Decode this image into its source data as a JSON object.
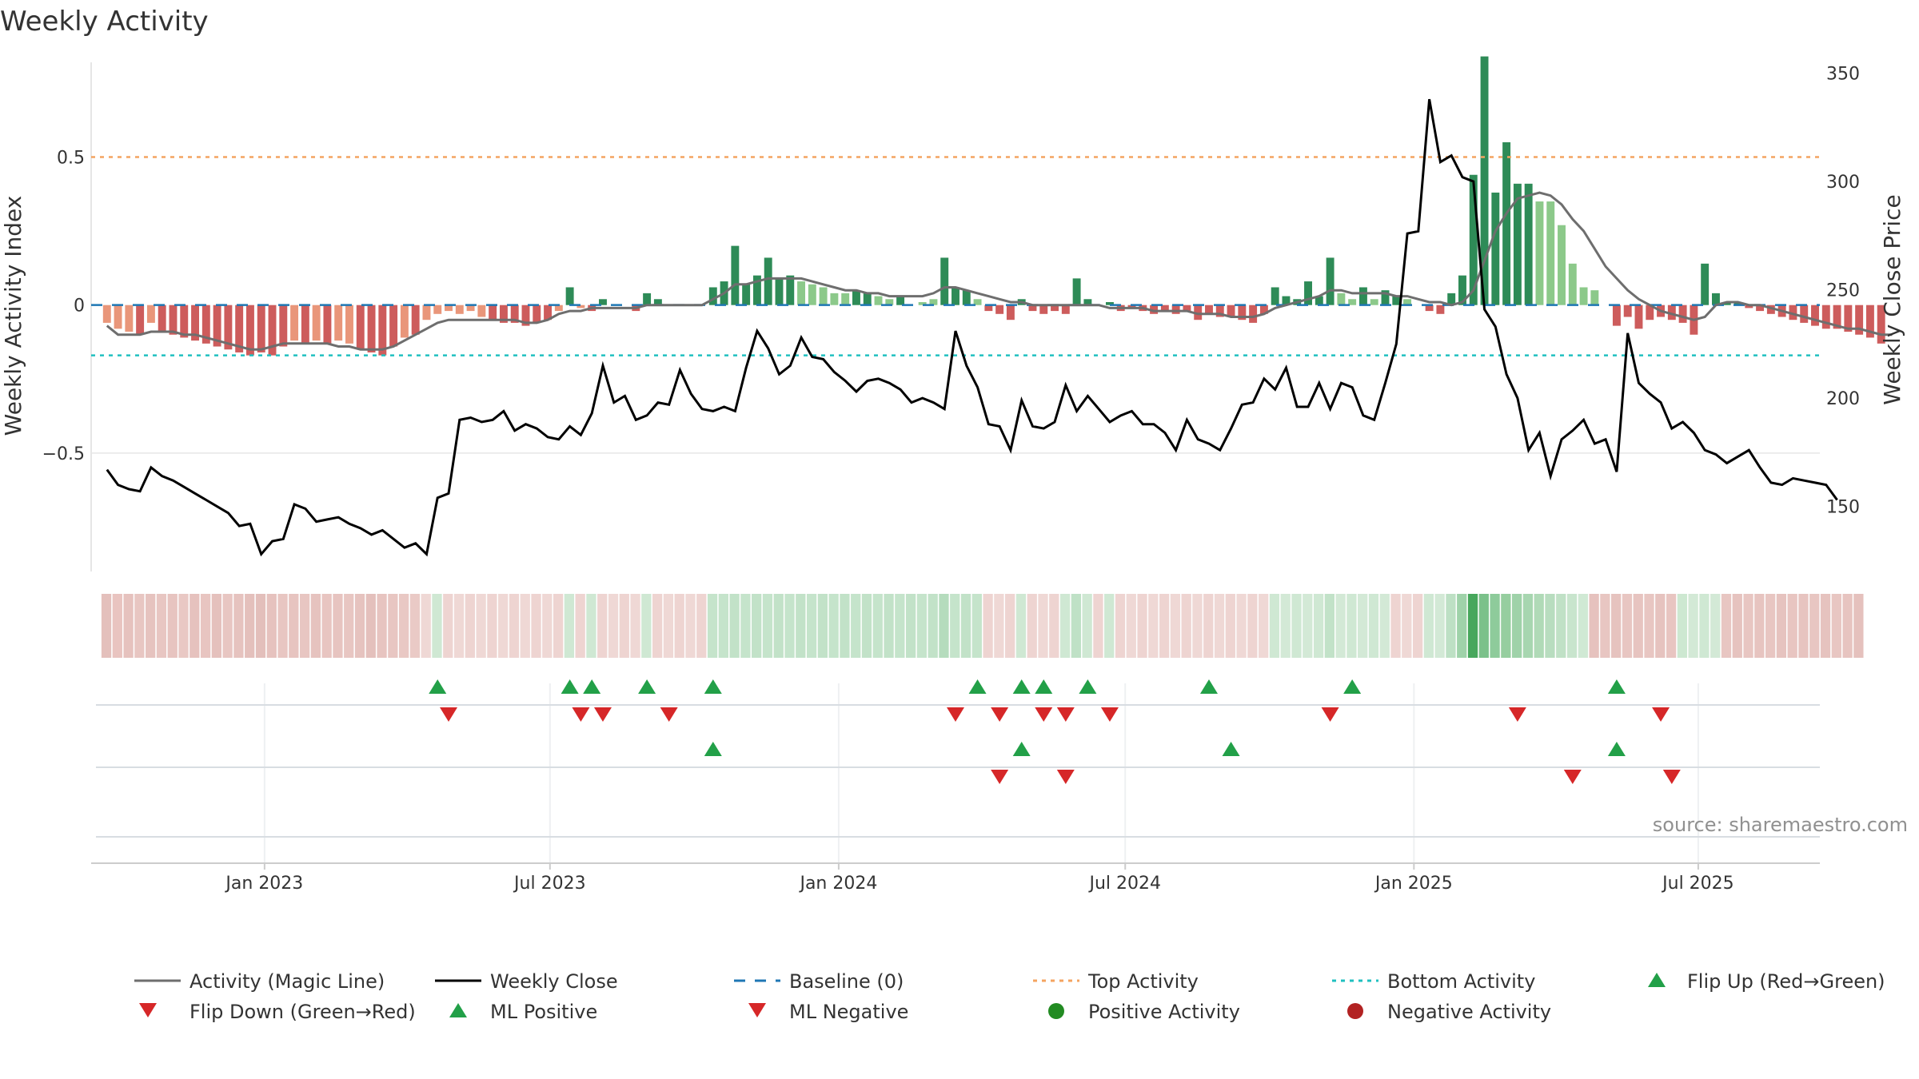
{
  "chart_data": {
    "type": "composite-bar-line",
    "title": "Weekly Activity",
    "ylabel": "Weekly Activity Index",
    "y2label": "Weekly Close Price",
    "source": "source: sharemaestro.com",
    "ylim": [
      -0.9,
      0.82
    ],
    "y2lim": [
      120,
      355
    ],
    "y_ticks": [
      {
        "v": 0.5,
        "label": "0.5"
      },
      {
        "v": 0,
        "label": "0"
      },
      {
        "v": -0.5,
        "label": "−0.5"
      }
    ],
    "y2_ticks": [
      {
        "v": 350,
        "label": "350"
      },
      {
        "v": 300,
        "label": "300"
      },
      {
        "v": 250,
        "label": "250"
      },
      {
        "v": 200,
        "label": "200"
      },
      {
        "v": 150,
        "label": "150"
      }
    ],
    "x_start_week": -1,
    "x_end_week": 155,
    "x_ticks": [
      {
        "w": 14.3,
        "label": "Jan 2023"
      },
      {
        "w": 40.2,
        "label": "Jul 2023"
      },
      {
        "w": 66.4,
        "label": "Jan 2024"
      },
      {
        "w": 92.4,
        "label": "Jul 2024"
      },
      {
        "w": 118.6,
        "label": "Jan 2025"
      },
      {
        "w": 144.4,
        "label": "Jul 2025"
      }
    ],
    "top_activity": 0.5,
    "bottom_activity": -0.17,
    "baseline": 0,
    "activity": [
      -0.06,
      -0.08,
      -0.09,
      -0.1,
      -0.06,
      -0.09,
      -0.1,
      -0.11,
      -0.12,
      -0.13,
      -0.14,
      -0.15,
      -0.16,
      -0.17,
      -0.16,
      -0.17,
      -0.14,
      -0.12,
      -0.13,
      -0.12,
      -0.13,
      -0.12,
      -0.13,
      -0.15,
      -0.16,
      -0.17,
      -0.14,
      -0.11,
      -0.1,
      -0.05,
      -0.03,
      -0.02,
      -0.03,
      -0.02,
      -0.04,
      -0.05,
      -0.06,
      -0.06,
      -0.07,
      -0.06,
      -0.05,
      -0.02,
      0.06,
      -0.01,
      -0.02,
      0.02,
      0.0,
      0.0,
      -0.02,
      0.04,
      0.02,
      0.0,
      0.0,
      0.0,
      0.0,
      0.06,
      0.08,
      0.2,
      0.07,
      0.1,
      0.16,
      0.09,
      0.1,
      0.08,
      0.07,
      0.06,
      0.04,
      0.04,
      0.05,
      0.04,
      0.03,
      0.02,
      0.03,
      0.0,
      0.01,
      0.02,
      0.16,
      0.06,
      0.05,
      0.02,
      -0.02,
      -0.03,
      -0.05,
      0.02,
      -0.02,
      -0.03,
      -0.02,
      -0.03,
      0.09,
      0.02,
      0.0,
      0.01,
      -0.02,
      -0.01,
      -0.02,
      -0.03,
      -0.02,
      -0.03,
      -0.02,
      -0.05,
      -0.03,
      -0.04,
      -0.04,
      -0.05,
      -0.06,
      -0.03,
      0.06,
      0.03,
      0.02,
      0.08,
      0.03,
      0.16,
      0.04,
      0.02,
      0.06,
      0.02,
      0.05,
      0.03,
      0.02,
      0.0,
      -0.02,
      -0.03,
      0.04,
      0.1,
      0.44,
      0.84,
      0.38,
      0.55,
      0.41,
      0.41,
      0.35,
      0.35,
      0.27,
      0.14,
      0.06,
      0.05,
      0.0,
      -0.07,
      -0.04,
      -0.08,
      -0.05,
      -0.04,
      -0.05,
      -0.06,
      -0.1,
      0.14,
      0.04,
      0.01,
      0.01,
      -0.01,
      -0.02,
      -0.03,
      -0.04,
      -0.05,
      -0.06,
      -0.07,
      -0.08,
      -0.08,
      -0.09,
      -0.1,
      -0.11,
      -0.13
    ],
    "magic_line": [
      -0.07,
      -0.1,
      -0.1,
      -0.1,
      -0.09,
      -0.09,
      -0.09,
      -0.1,
      -0.1,
      -0.11,
      -0.12,
      -0.13,
      -0.14,
      -0.15,
      -0.15,
      -0.14,
      -0.13,
      -0.13,
      -0.13,
      -0.13,
      -0.13,
      -0.14,
      -0.14,
      -0.15,
      -0.15,
      -0.15,
      -0.14,
      -0.12,
      -0.1,
      -0.08,
      -0.06,
      -0.05,
      -0.05,
      -0.05,
      -0.05,
      -0.05,
      -0.05,
      -0.05,
      -0.06,
      -0.06,
      -0.05,
      -0.03,
      -0.02,
      -0.02,
      -0.01,
      -0.01,
      -0.01,
      -0.01,
      -0.01,
      0.0,
      0.0,
      0.0,
      0.0,
      0.0,
      0.0,
      0.02,
      0.04,
      0.07,
      0.07,
      0.08,
      0.09,
      0.09,
      0.09,
      0.09,
      0.08,
      0.07,
      0.06,
      0.05,
      0.05,
      0.04,
      0.04,
      0.03,
      0.03,
      0.03,
      0.03,
      0.04,
      0.06,
      0.06,
      0.05,
      0.04,
      0.03,
      0.02,
      0.01,
      0.01,
      0.0,
      0.0,
      0.0,
      0.0,
      0.0,
      0.0,
      0.0,
      -0.01,
      -0.01,
      -0.01,
      -0.01,
      -0.02,
      -0.02,
      -0.02,
      -0.02,
      -0.03,
      -0.03,
      -0.03,
      -0.04,
      -0.04,
      -0.04,
      -0.03,
      -0.01,
      0.0,
      0.01,
      0.02,
      0.03,
      0.05,
      0.05,
      0.04,
      0.04,
      0.04,
      0.04,
      0.03,
      0.03,
      0.02,
      0.01,
      0.01,
      0.0,
      0.01,
      0.05,
      0.15,
      0.25,
      0.31,
      0.36,
      0.37,
      0.38,
      0.37,
      0.34,
      0.29,
      0.25,
      0.19,
      0.13,
      0.09,
      0.05,
      0.02,
      0.0,
      -0.02,
      -0.03,
      -0.04,
      -0.05,
      -0.04,
      0.0,
      0.01,
      0.01,
      0.0,
      0.0,
      -0.01,
      -0.02,
      -0.03,
      -0.04,
      -0.05,
      -0.06,
      -0.07,
      -0.08,
      -0.08,
      -0.09,
      -0.1,
      -0.1
    ],
    "weekly_close": [
      167,
      160,
      158,
      157,
      168,
      164,
      162,
      159,
      156,
      153,
      150,
      147,
      141,
      142,
      128,
      134,
      135,
      151,
      149,
      143,
      144,
      145,
      142,
      140,
      137,
      139,
      135,
      131,
      133,
      128,
      154,
      156,
      190,
      191,
      189,
      190,
      194,
      185,
      188,
      186,
      182,
      181,
      187,
      183,
      193,
      215,
      198,
      201,
      190,
      192,
      198,
      197,
      213,
      202,
      195,
      194,
      196,
      194,
      214,
      231,
      223,
      211,
      215,
      228,
      219,
      218,
      212,
      208,
      203,
      208,
      209,
      207,
      204,
      198,
      200,
      198,
      195,
      231,
      215,
      205,
      188,
      187,
      176,
      199,
      187,
      186,
      189,
      206,
      194,
      201,
      195,
      189,
      192,
      194,
      188,
      188,
      184,
      176,
      190,
      181,
      179,
      176,
      186,
      197,
      198,
      209,
      204,
      214,
      196,
      196,
      207,
      195,
      207,
      205,
      192,
      190,
      207,
      225,
      276,
      277,
      338,
      309,
      312,
      302,
      300,
      241,
      233,
      211,
      200,
      176,
      184,
      164,
      181,
      185,
      190,
      179,
      181,
      166,
      230,
      207,
      202,
      198,
      186,
      189,
      184,
      176,
      174,
      170,
      173,
      176,
      168,
      161,
      160,
      163,
      162,
      161,
      160,
      153
    ],
    "strip_colors": [
      "#e4c0bc",
      "#e9c4c0",
      "#e6c2be",
      "#e8c6c2",
      "#e6c3bf",
      "#e8c6c2",
      "#e7c4c0",
      "#e9c8c4",
      "#e6c2be",
      "#e8c5c1",
      "#e5c1bd",
      "#e8c6c2",
      "#e6c3bf",
      "#e4c0bc",
      "#e3bfbb",
      "#e6c2be",
      "#e8c6c2",
      "#e7c4c0",
      "#e8c6c2",
      "#e6c3bf",
      "#e8c5c1",
      "#e7c4c0",
      "#e8c6c2",
      "#e6c3bf",
      "#e4c0bc",
      "#e7c4c0",
      "#e8c6c2",
      "#e9c8c4",
      "#eacac6",
      "#efd8d5",
      "#cfe8d3",
      "#eed4d1",
      "#efd8d5",
      "#eed4d1",
      "#efd8d5",
      "#eed4d1",
      "#efd8d5",
      "#eed4d1",
      "#efd8d5",
      "#eed4d1",
      "#efd8d5",
      "#eed4d1",
      "#cfe8d3",
      "#eed4d1",
      "#cfe8d3",
      "#eed4d1",
      "#efd8d5",
      "#eed4d1",
      "#efd8d5",
      "#cfe8d3",
      "#eed4d1",
      "#efd8d5",
      "#eed4d1",
      "#efd8d5",
      "#eed4d1",
      "#c5e4cb",
      "#c5e4cb",
      "#c2e2c8",
      "#c5e4cb",
      "#c2e2c8",
      "#c5e4cb",
      "#c2e2c8",
      "#c5e4cb",
      "#c2e2c8",
      "#c5e4cb",
      "#c2e2c8",
      "#c5e4cb",
      "#c2e2c8",
      "#c5e4cb",
      "#c2e2c8",
      "#c5e4cb",
      "#c2e2c8",
      "#c5e4cb",
      "#c2e2c8",
      "#c5e4cb",
      "#c2e2c8",
      "#b5dcbd",
      "#c5e4cb",
      "#c2e2c8",
      "#c5e4cb",
      "#eed4d1",
      "#efd8d5",
      "#eed4d1",
      "#cfe8d3",
      "#eed4d1",
      "#efd8d5",
      "#eed4d1",
      "#cfe8d3",
      "#bfe1c6",
      "#cfe8d3",
      "#eed4d1",
      "#cfe8d3",
      "#eed4d1",
      "#efd8d5",
      "#eed4d1",
      "#efd8d5",
      "#eed4d1",
      "#efd8d5",
      "#eed4d1",
      "#efd8d5",
      "#eed4d1",
      "#efd8d5",
      "#eed4d1",
      "#efd8d5",
      "#eed4d1",
      "#efd8d5",
      "#cfe8d3",
      "#d3e9d6",
      "#cfe8d3",
      "#d3e9d6",
      "#cfe8d3",
      "#c2e2c8",
      "#d3e9d6",
      "#cfe8d3",
      "#d3e9d6",
      "#cfe8d3",
      "#d3e9d6",
      "#eed4d1",
      "#efd8d5",
      "#eed4d1",
      "#cfe8d3",
      "#d3e9d6",
      "#bde0c4",
      "#9fd2a9",
      "#47a75c",
      "#7bc18a",
      "#8ecb9b",
      "#96ce9f",
      "#9fd2a9",
      "#a7d6b0",
      "#b0dab7",
      "#b8ddbf",
      "#c0e1c6",
      "#c8e5cd",
      "#d0e9d4",
      "#e6c2be",
      "#e8c6c2",
      "#e6c3bf",
      "#e8c6c2",
      "#e7c4c0",
      "#e8c6c2",
      "#e6c3bf",
      "#e8c5c1",
      "#cde8d1",
      "#d3e9d6",
      "#cfe8d3",
      "#d3e9d6",
      "#e8c6c2",
      "#e6c3bf",
      "#e8c6c2",
      "#e7c4c0",
      "#e8c6c2",
      "#e6c3bf",
      "#e8c5c1",
      "#e7c4c0",
      "#e8c6c2",
      "#e6c3bf",
      "#e8c6c2",
      "#e7c4c0",
      "#e5c1bd"
    ],
    "flip_up_weeks": [
      30,
      42,
      44,
      49,
      55,
      79,
      83,
      85,
      89,
      100,
      113,
      137
    ],
    "flip_down_weeks": [
      31,
      43,
      45,
      51,
      77,
      81,
      85,
      87,
      91,
      111,
      128,
      141
    ],
    "ml_positive_weeks": [
      55,
      83,
      102,
      137
    ],
    "ml_negative_weeks": [
      81,
      87,
      133,
      142
    ],
    "colors": {
      "pos_dark": "#2e8b57",
      "pos_light": "#8cc98a",
      "neg_dark": "#cd5c5c",
      "neg_light": "#e9967a",
      "magic_line": "#6e6e6e",
      "close": "#000000",
      "baseline": "#1f77b4",
      "top": "#f4a460",
      "bottom": "#20c0c0",
      "marker_up": "#22a048",
      "marker_down": "#d62728",
      "dot_pos": "#228b22",
      "dot_neg": "#b22222"
    }
  },
  "legend": {
    "magic_line": "Activity (Magic Line)",
    "weekly_close": "Weekly Close",
    "baseline": "Baseline (0)",
    "top_activity": "Top Activity",
    "bottom_activity": "Bottom Activity",
    "flip_up": "Flip Up (Red→Green)",
    "flip_down": "Flip Down (Green→Red)",
    "ml_positive": "ML Positive",
    "ml_negative": "ML Negative",
    "positive_activity": "Positive Activity",
    "negative_activity": "Negative Activity"
  }
}
